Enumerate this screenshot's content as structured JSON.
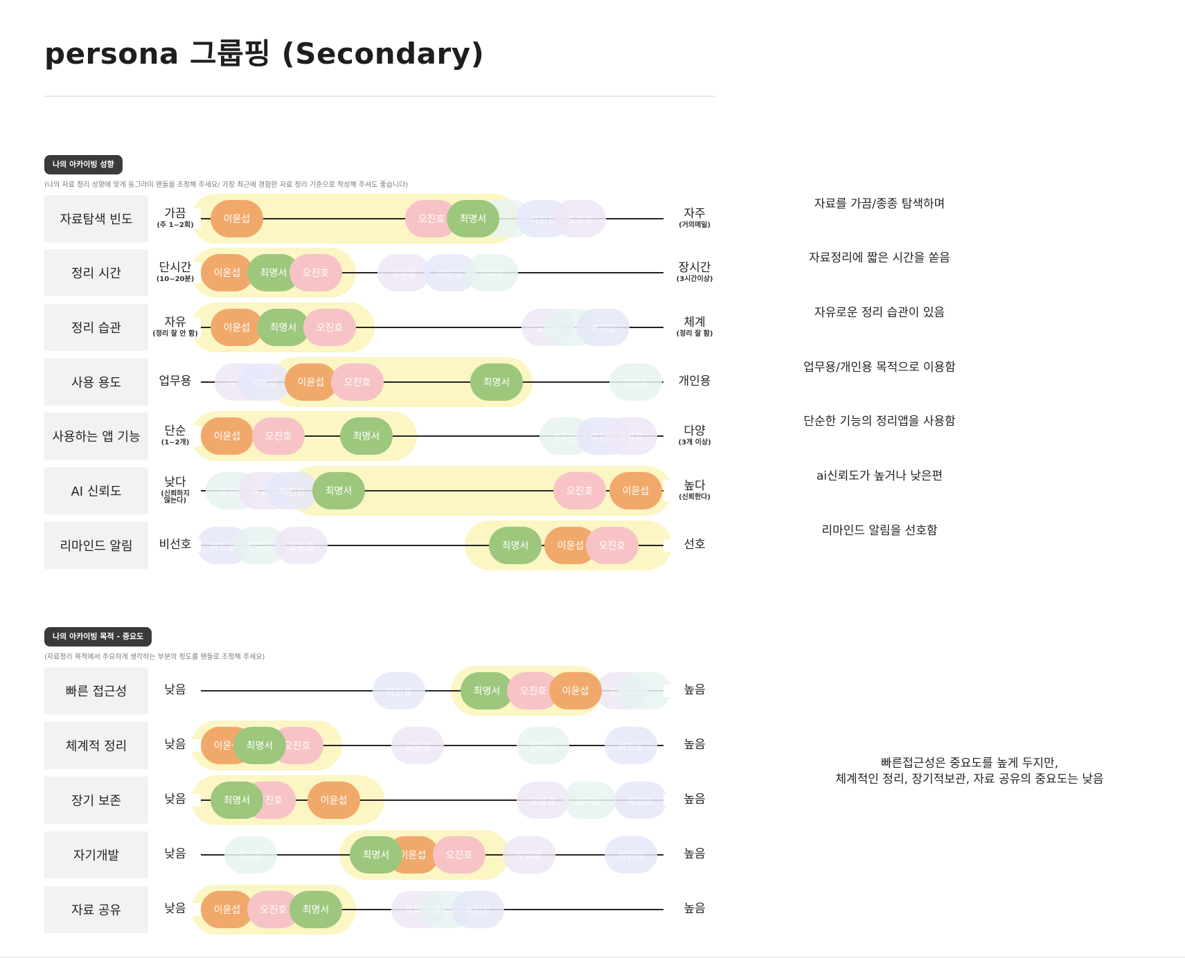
{
  "title": "persona 그룹핑 (Secondary)",
  "colors": {
    "orange": "#f0a96b",
    "pink": "#f7c3c6",
    "green": "#9cc77d",
    "highlight": "#fbf6c4",
    "faint_purple": "#ece4f6",
    "faint_blue": "#e6e8fa",
    "faint_teal": "#e7f3f1",
    "faint_lilac": "#efe7f6"
  },
  "section1": {
    "badge": "나의 아카이빙 성향",
    "note": "(나의 자료 정리 성향에 맞게 동그라미 핸들을 조정해 주세요/ 가장 최근에 경험한 자료 정리 기준으로 작성해 주셔도 좋습니다)",
    "rows": [
      {
        "label": "자료탐색 빈도",
        "left": "가끔",
        "left_sub": "(주 1~2회)",
        "right": "자주",
        "right_sub": "(거의매일)",
        "desc": "자료를 가끔/종종 탐색하며",
        "highlight": [
          0.0,
          0.67
        ],
        "chips": [
          {
            "name": "이윤섭",
            "pos": 0.08,
            "color": "orange"
          },
          {
            "name": "오진호",
            "pos": 0.5,
            "color": "pink"
          },
          {
            "name": "최명서",
            "pos": 0.59,
            "color": "green"
          },
          {
            "name": "",
            "pos": 0.66,
            "color": "faint_teal",
            "faint": true
          },
          {
            "name": "박민성",
            "pos": 0.74,
            "color": "faint_blue",
            "faint": true
          },
          {
            "name": "조유경",
            "pos": 0.82,
            "color": "faint_lilac",
            "faint": true
          }
        ]
      },
      {
        "label": "정리 시간",
        "left": "단시간",
        "left_sub": "(10~20분)",
        "right": "장시간",
        "right_sub": "(3시간이상)",
        "desc": "자료정리에 짧은 시간을 쏟음",
        "highlight": [
          0.0,
          0.32
        ],
        "chips": [
          {
            "name": "이윤섭",
            "pos": 0.06,
            "color": "orange"
          },
          {
            "name": "최명서",
            "pos": 0.16,
            "color": "green"
          },
          {
            "name": "오진호",
            "pos": 0.25,
            "color": "pink"
          },
          {
            "name": "조유경",
            "pos": 0.44,
            "color": "faint_lilac",
            "faint": true
          },
          {
            "name": "박민성",
            "pos": 0.54,
            "color": "faint_blue",
            "faint": true
          },
          {
            "name": "한지은",
            "pos": 0.63,
            "color": "faint_teal",
            "faint": true
          }
        ]
      },
      {
        "label": "정리 습관",
        "left": "자유",
        "left_sub": "(정리 잘 안 함)",
        "right": "체계",
        "right_sub": "(정리 잘 함)",
        "desc": "자유로운 정리 습관이 있음",
        "highlight": [
          0.0,
          0.36
        ],
        "chips": [
          {
            "name": "이윤섭",
            "pos": 0.08,
            "color": "orange"
          },
          {
            "name": "최명서",
            "pos": 0.18,
            "color": "green"
          },
          {
            "name": "오진호",
            "pos": 0.28,
            "color": "pink"
          },
          {
            "name": "오유경",
            "pos": 0.75,
            "color": "faint_lilac",
            "faint": true
          },
          {
            "name": "",
            "pos": 0.8,
            "color": "faint_teal",
            "faint": true
          },
          {
            "name": "박민성",
            "pos": 0.87,
            "color": "faint_blue",
            "faint": true
          }
        ]
      },
      {
        "label": "사용 용도",
        "left": "업무용",
        "left_sub": "",
        "right": "개인용",
        "right_sub": "",
        "desc": "업무용/개인용 목적으로 이용함",
        "highlight": [
          0.17,
          0.7
        ],
        "chips": [
          {
            "name": "오유경",
            "pos": 0.09,
            "color": "faint_lilac",
            "faint": true
          },
          {
            "name": "박민성",
            "pos": 0.14,
            "color": "faint_blue",
            "faint": true
          },
          {
            "name": "이윤섭",
            "pos": 0.24,
            "color": "orange"
          },
          {
            "name": "오진호",
            "pos": 0.34,
            "color": "pink"
          },
          {
            "name": "최명서",
            "pos": 0.64,
            "color": "green"
          },
          {
            "name": "한지은",
            "pos": 0.94,
            "color": "faint_teal",
            "faint": true
          }
        ]
      },
      {
        "label": "사용하는 앱 기능",
        "left": "단순",
        "left_sub": "(1~2개)",
        "right": "다양",
        "right_sub": "(3개 이상)",
        "desc": "단순한 기능의 정리앱을 사용함",
        "highlight": [
          0.0,
          0.45
        ],
        "chips": [
          {
            "name": "이윤섭",
            "pos": 0.06,
            "color": "orange"
          },
          {
            "name": "오진호",
            "pos": 0.17,
            "color": "pink"
          },
          {
            "name": "최명서",
            "pos": 0.36,
            "color": "green"
          },
          {
            "name": "한지은",
            "pos": 0.79,
            "color": "faint_teal",
            "faint": true
          },
          {
            "name": "박민성",
            "pos": 0.87,
            "color": "faint_blue",
            "faint": true
          },
          {
            "name": "오유경",
            "pos": 0.93,
            "color": "faint_lilac",
            "faint": true
          }
        ]
      },
      {
        "label": "AI 신뢰도",
        "left": "낮다",
        "left_sub": "(신뢰하지\n않는다)",
        "right": "높다",
        "right_sub": "(신뢰한다)",
        "desc": "ai신뢰도가 높거나 낮은편",
        "highlight": [
          0.21,
          1.0
        ],
        "chips": [
          {
            "name": "한지은",
            "pos": 0.07,
            "color": "faint_teal",
            "faint": true
          },
          {
            "name": "오유경",
            "pos": 0.14,
            "color": "faint_lilac",
            "faint": true
          },
          {
            "name": "박민성",
            "pos": 0.2,
            "color": "faint_blue",
            "faint": true
          },
          {
            "name": "최명서",
            "pos": 0.3,
            "color": "green"
          },
          {
            "name": "오진호",
            "pos": 0.82,
            "color": "pink"
          },
          {
            "name": "이윤섭",
            "pos": 0.94,
            "color": "orange"
          }
        ]
      },
      {
        "label": "리마인드 알림",
        "left": "비선호",
        "left_sub": "",
        "right": "선호",
        "right_sub": "",
        "desc": "리마인드 알림을 선호함",
        "highlight": [
          0.59,
          1.0
        ],
        "chips": [
          {
            "name": "박민성",
            "pos": 0.05,
            "color": "faint_blue",
            "faint": true
          },
          {
            "name": "한지은",
            "pos": 0.13,
            "color": "faint_teal",
            "faint": true
          },
          {
            "name": "오유경",
            "pos": 0.22,
            "color": "faint_lilac",
            "faint": true
          },
          {
            "name": "최명서",
            "pos": 0.68,
            "color": "green"
          },
          {
            "name": "이윤섭",
            "pos": 0.8,
            "color": "orange"
          },
          {
            "name": "오진호",
            "pos": 0.89,
            "color": "pink"
          }
        ]
      }
    ]
  },
  "section2": {
    "badge": "나의 아카이빙 목적 - 중요도",
    "note": "(자료정리 목적에서 주요하게 생각하는 부분의 정도를 핸들로 조정해 주세요)",
    "desc": "빠른접근성은 중요도를 높게 두지만,\n체계적인 정리, 장기적보관, 자료 공유의 중요도는 낮음",
    "rows": [
      {
        "label": "빠른 접근성",
        "left": "낮음",
        "right": "높음",
        "highlight": [
          0.56,
          0.85
        ],
        "chips": [
          {
            "name": "박민성",
            "pos": 0.43,
            "color": "faint_blue",
            "faint": true
          },
          {
            "name": "최명서",
            "pos": 0.62,
            "color": "green"
          },
          {
            "name": "오진호",
            "pos": 0.72,
            "color": "pink"
          },
          {
            "name": "이윤섭",
            "pos": 0.81,
            "color": "orange"
          },
          {
            "name": "오유경",
            "pos": 0.91,
            "color": "faint_lilac",
            "faint": true
          },
          {
            "name": "",
            "pos": 0.96,
            "color": "faint_teal",
            "faint": true
          }
        ]
      },
      {
        "label": "체계적 정리",
        "left": "낮음",
        "right": "높음",
        "highlight": [
          0.0,
          0.29
        ],
        "chips": [
          {
            "name": "이윤섭",
            "pos": 0.06,
            "color": "orange"
          },
          {
            "name": "오진호",
            "pos": 0.21,
            "color": "pink"
          },
          {
            "name": "최명서",
            "pos": 0.13,
            "color": "green"
          },
          {
            "name": "오유경",
            "pos": 0.47,
            "color": "faint_lilac",
            "faint": true
          },
          {
            "name": "한지은",
            "pos": 0.74,
            "color": "faint_teal",
            "faint": true
          },
          {
            "name": "박민성",
            "pos": 0.93,
            "color": "faint_blue",
            "faint": true
          }
        ]
      },
      {
        "label": "장기 보존",
        "left": "낮음",
        "right": "높음",
        "highlight": [
          0.0,
          0.38
        ],
        "chips": [
          {
            "name": "오진호",
            "pos": 0.15,
            "color": "pink"
          },
          {
            "name": "최명서",
            "pos": 0.08,
            "color": "green"
          },
          {
            "name": "이윤섭",
            "pos": 0.29,
            "color": "orange"
          },
          {
            "name": "오유경",
            "pos": 0.74,
            "color": "faint_lilac",
            "faint": true
          },
          {
            "name": "한지은",
            "pos": 0.84,
            "color": "faint_teal",
            "faint": true
          },
          {
            "name": "박민성",
            "pos": 0.95,
            "color": "faint_blue",
            "faint": true
          }
        ]
      },
      {
        "label": "자기개발",
        "left": "낮음",
        "right": "높음",
        "highlight": [
          0.32,
          0.65
        ],
        "chips": [
          {
            "name": "한지은",
            "pos": 0.11,
            "color": "faint_teal",
            "faint": true
          },
          {
            "name": "이윤섭",
            "pos": 0.46,
            "color": "orange"
          },
          {
            "name": "오진호",
            "pos": 0.56,
            "color": "pink"
          },
          {
            "name": "최명서",
            "pos": 0.38,
            "color": "green"
          },
          {
            "name": "오유경",
            "pos": 0.71,
            "color": "faint_lilac",
            "faint": true
          },
          {
            "name": "박민성",
            "pos": 0.93,
            "color": "faint_blue",
            "faint": true
          }
        ]
      },
      {
        "label": "자료 공유",
        "left": "낮음",
        "right": "높음",
        "highlight": [
          0.0,
          0.32
        ],
        "chips": [
          {
            "name": "이윤섭",
            "pos": 0.06,
            "color": "orange"
          },
          {
            "name": "오진호",
            "pos": 0.16,
            "color": "pink"
          },
          {
            "name": "최명서",
            "pos": 0.25,
            "color": "green"
          },
          {
            "name": "오유경",
            "pos": 0.47,
            "color": "faint_lilac",
            "faint": true
          },
          {
            "name": "한지은",
            "pos": 0.53,
            "color": "faint_teal",
            "faint": true
          },
          {
            "name": "박민성",
            "pos": 0.6,
            "color": "faint_blue",
            "faint": true
          }
        ]
      }
    ]
  }
}
